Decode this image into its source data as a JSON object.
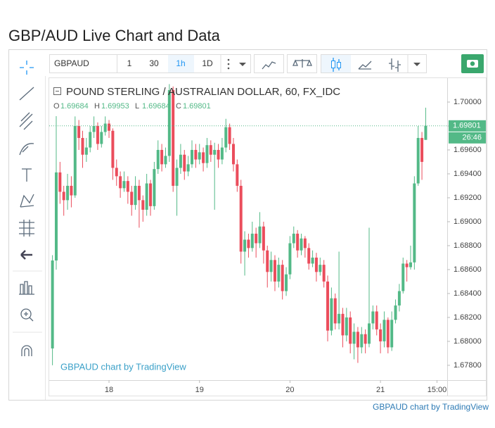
{
  "page_title": "GBP/AUD Live Chart and Data",
  "toolbar": {
    "symbol": "GBPAUD",
    "intervals": [
      "1",
      "30",
      "1h",
      "1D"
    ]
  },
  "chart_data": {
    "type": "candlestick",
    "title": "POUND STERLING / AUSTRALIAN DOLLAR, 60, FX_IDC",
    "ohlc_labels": [
      "O",
      "H",
      "L",
      "C"
    ],
    "open": [
      1.67941,
      1.68676,
      1.69412,
      1.6925,
      1.6918,
      1.693,
      1.6922,
      1.698,
      1.697,
      1.6956,
      1.6962,
      1.6975,
      1.698,
      1.6965,
      1.6975,
      1.6982,
      1.6976,
      1.6945,
      1.6938,
      1.6928,
      1.6934,
      1.6925,
      1.6914,
      1.693,
      1.6918,
      1.691,
      1.6932,
      1.6913,
      1.6944,
      1.696,
      1.6948,
      1.6955,
      1.701,
      1.693,
      1.6945,
      1.6956,
      1.6942,
      1.6948,
      1.696,
      1.6952,
      1.6958,
      1.6949,
      1.6964,
      1.6956,
      1.696,
      1.6952,
      1.6962,
      1.6979,
      1.6965,
      1.6948,
      1.693,
      1.6875,
      1.6885,
      1.6878,
      1.689,
      1.6882,
      1.6896,
      1.6876,
      1.6858,
      1.6868,
      1.685,
      1.6864,
      1.6842,
      1.6856,
      1.6882,
      1.689,
      1.6876,
      1.6886,
      1.6878,
      1.6865,
      1.687,
      1.6858,
      1.6864,
      1.685,
      1.6809,
      1.6836,
      1.6815,
      1.6823,
      1.6805,
      1.682,
      1.6798,
      1.6808,
      1.6795,
      1.6806,
      1.6798,
      1.6815,
      1.6825,
      1.681,
      1.68,
      1.6818,
      1.6795,
      1.6818,
      1.683,
      1.6842,
      1.6865,
      1.6862,
      1.6866,
      1.6932,
      1.697,
      1.69684
    ],
    "high": [
      1.6872,
      1.69882,
      1.695,
      1.693,
      1.694,
      1.6938,
      1.6988,
      1.6985,
      1.6976,
      1.697,
      1.698,
      1.6988,
      1.6983,
      1.698,
      1.6988,
      1.6985,
      1.6978,
      1.6952,
      1.6942,
      1.6942,
      1.6938,
      1.693,
      1.6938,
      1.6935,
      1.6922,
      1.694,
      1.6935,
      1.695,
      1.6968,
      1.6965,
      1.6962,
      1.7015,
      1.7013,
      1.6952,
      1.6965,
      1.696,
      1.6955,
      1.6968,
      1.6965,
      1.6965,
      1.6962,
      1.697,
      1.6968,
      1.6966,
      1.6965,
      1.697,
      1.6986,
      1.6982,
      1.697,
      1.6952,
      1.6935,
      1.6892,
      1.689,
      1.69,
      1.6895,
      1.6908,
      1.69,
      1.688,
      1.6875,
      1.6872,
      1.687,
      1.6868,
      1.6862,
      1.6888,
      1.6896,
      1.6893,
      1.689,
      1.6888,
      1.6882,
      1.6876,
      1.6874,
      1.687,
      1.6868,
      1.6855,
      1.6845,
      1.684,
      1.6875,
      1.6828,
      1.6828,
      1.6825,
      1.6815,
      1.6812,
      1.6812,
      1.681,
      1.6895,
      1.683,
      1.683,
      1.6815,
      1.6825,
      1.682,
      1.6825,
      1.6835,
      1.6848,
      1.687,
      1.6868,
      1.688,
      1.6938,
      1.698,
      1.6975,
      1.69953
    ],
    "low": [
      1.678,
      1.686,
      1.6915,
      1.6905,
      1.691,
      1.6912,
      1.692,
      1.696,
      1.6945,
      1.695,
      1.6958,
      1.697,
      1.696,
      1.6962,
      1.6972,
      1.697,
      1.6935,
      1.693,
      1.692,
      1.6925,
      1.6915,
      1.6905,
      1.691,
      1.6895,
      1.69,
      1.6905,
      1.6905,
      1.691,
      1.694,
      1.6942,
      1.6945,
      1.695,
      1.6925,
      1.6905,
      1.694,
      1.6935,
      1.6938,
      1.6945,
      1.6945,
      1.6948,
      1.6942,
      1.6945,
      1.695,
      1.691,
      1.6945,
      1.6948,
      1.6958,
      1.696,
      1.6942,
      1.6925,
      1.6865,
      1.6855,
      1.687,
      1.6875,
      1.687,
      1.6878,
      1.6865,
      1.6845,
      1.685,
      1.6842,
      1.6845,
      1.6835,
      1.6838,
      1.6852,
      1.6878,
      1.687,
      1.6872,
      1.687,
      1.686,
      1.6862,
      1.685,
      1.6855,
      1.6845,
      1.68,
      1.6805,
      1.681,
      1.681,
      1.6795,
      1.68,
      1.679,
      1.6785,
      1.6782,
      1.679,
      1.679,
      1.6795,
      1.681,
      1.6805,
      1.679,
      1.6795,
      1.679,
      1.6792,
      1.6815,
      1.6825,
      1.684,
      1.685,
      1.686,
      1.686,
      1.693,
      1.6935,
      1.69684
    ],
    "close": [
      1.68676,
      1.69412,
      1.6925,
      1.6918,
      1.693,
      1.6922,
      1.698,
      1.697,
      1.6956,
      1.6962,
      1.6975,
      1.698,
      1.6965,
      1.6975,
      1.6982,
      1.6976,
      1.6945,
      1.6938,
      1.6928,
      1.6934,
      1.6925,
      1.6914,
      1.693,
      1.6918,
      1.691,
      1.6932,
      1.6913,
      1.6944,
      1.696,
      1.6948,
      1.6955,
      1.701,
      1.693,
      1.6945,
      1.6956,
      1.6942,
      1.6948,
      1.696,
      1.6952,
      1.6958,
      1.6949,
      1.6964,
      1.6956,
      1.696,
      1.6952,
      1.6962,
      1.6979,
      1.6965,
      1.6948,
      1.693,
      1.6875,
      1.6885,
      1.6878,
      1.689,
      1.6882,
      1.6896,
      1.6876,
      1.6858,
      1.6868,
      1.685,
      1.6864,
      1.6842,
      1.6856,
      1.6882,
      1.689,
      1.6876,
      1.6886,
      1.6878,
      1.6865,
      1.687,
      1.6858,
      1.6864,
      1.685,
      1.6809,
      1.6836,
      1.6815,
      1.6823,
      1.6805,
      1.682,
      1.6798,
      1.6808,
      1.6795,
      1.6806,
      1.6798,
      1.6815,
      1.6825,
      1.681,
      1.68,
      1.6818,
      1.6795,
      1.6818,
      1.683,
      1.6842,
      1.6865,
      1.6862,
      1.6866,
      1.6932,
      1.697,
      1.695,
      1.69801
    ],
    "up_color": "#53b987",
    "down_color": "#eb4d5c",
    "ylim": [
      1.67676,
      1.70194
    ],
    "yticks": [
      {
        "value": 1.678,
        "label": "1.67800"
      },
      {
        "value": 1.68,
        "label": "1.68000"
      },
      {
        "value": 1.682,
        "label": "1.68200"
      },
      {
        "value": 1.684,
        "label": "1.68400"
      },
      {
        "value": 1.686,
        "label": "1.68600"
      },
      {
        "value": 1.688,
        "label": "1.68800"
      },
      {
        "value": 1.69,
        "label": "1.69000"
      },
      {
        "value": 1.692,
        "label": "1.69200"
      },
      {
        "value": 1.694,
        "label": "1.69400"
      },
      {
        "value": 1.696,
        "label": "1.69600"
      },
      {
        "value": 1.698,
        "label": "1.69800"
      },
      {
        "value": 1.7,
        "label": "1.70000"
      }
    ],
    "xlim": [
      -0.86,
      104.7
    ],
    "xticks": [
      {
        "value": 15,
        "label": "18"
      },
      {
        "value": 39,
        "label": "19"
      },
      {
        "value": 63,
        "label": "20"
      },
      {
        "value": 87,
        "label": "21"
      },
      {
        "value": 102,
        "label": "15:00"
      }
    ],
    "countdown": "26:46",
    "watermark": "GBPAUD chart by TradingView"
  },
  "footer": "GBPAUD chart by TradingView"
}
